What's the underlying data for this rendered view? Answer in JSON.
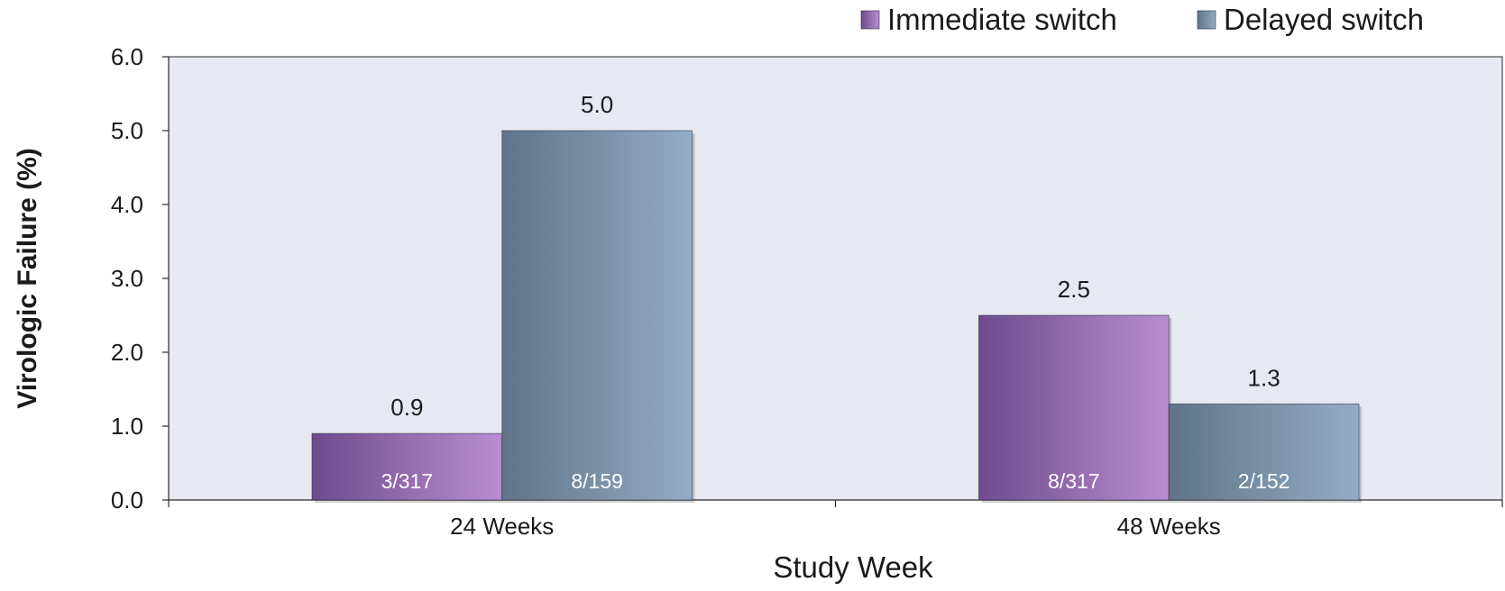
{
  "chart_data": {
    "type": "bar",
    "title": "",
    "xlabel": "Study Week",
    "ylabel": "Virologic Failure (%)",
    "categories": [
      "24 Weeks",
      "48 Weeks"
    ],
    "ylim": [
      0,
      6
    ],
    "yticks": [
      "0.0",
      "1.0",
      "2.0",
      "3.0",
      "4.0",
      "5.0",
      "6.0"
    ],
    "grid": false,
    "legend_position": "top-right",
    "series": [
      {
        "name": "Immediate switch",
        "values": [
          0.9,
          2.5
        ],
        "value_labels": [
          "0.9",
          "2.5"
        ],
        "inner_labels": [
          "3/317",
          "8/317"
        ],
        "color_dark": "#6f4a8e",
        "color_light": "#b98ed0"
      },
      {
        "name": "Delayed switch",
        "values": [
          5.0,
          1.3
        ],
        "value_labels": [
          "5.0",
          "1.3"
        ],
        "inner_labels": [
          "8/159",
          "2/152"
        ],
        "color_dark": "#5f7489",
        "color_light": "#93adc6"
      }
    ],
    "plot_background": "#e6e9f1"
  }
}
